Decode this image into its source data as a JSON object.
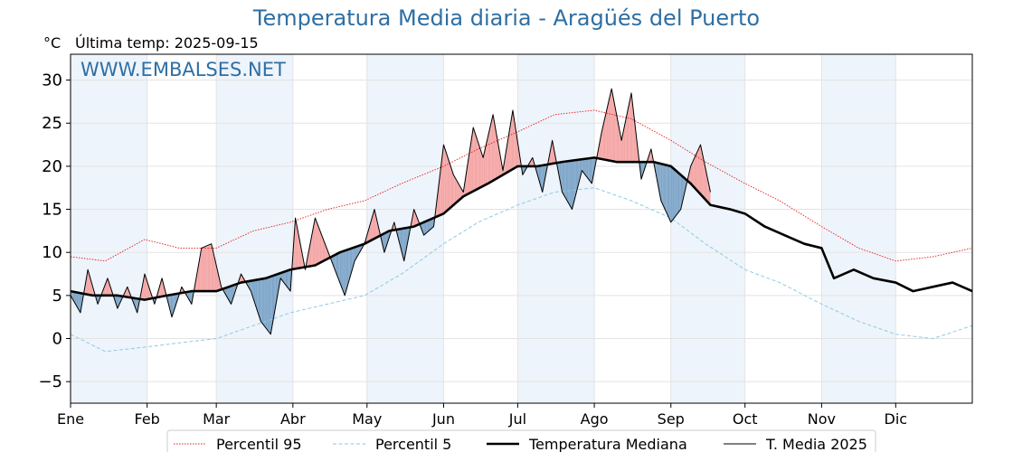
{
  "page": {
    "title": "Temperatura Media diaria - Aragüés del Puerto",
    "unit": "°C",
    "last_temp_label": "Última temp: 2025-09-15",
    "watermark": "WWW.EMBALSES.NET"
  },
  "colors": {
    "title": "#2e6fa3",
    "p95": "#e31a1c",
    "p5": "#8ecae6",
    "median": "#000000",
    "mean2025": "#000000",
    "fill_above": "#f4a6a6",
    "fill_above_strong": "#e84b4b",
    "fill_below": "#7fa6c9",
    "fill_below_strong": "#1f5f9e",
    "month_band": "#eef4fb"
  },
  "chart_data": {
    "type": "line",
    "title": "Temperatura Media diaria - Aragüés del Puerto",
    "ylabel": "°C",
    "ylim": [
      -7.5,
      33
    ],
    "xlim": [
      1,
      366
    ],
    "yticks": [
      -5,
      0,
      5,
      10,
      15,
      20,
      25,
      30
    ],
    "x_ticks": [
      {
        "label": "Ene",
        "day": 1
      },
      {
        "label": "Feb",
        "day": 32
      },
      {
        "label": "Mar",
        "day": 60
      },
      {
        "label": "Abr",
        "day": 91
      },
      {
        "label": "May",
        "day": 121
      },
      {
        "label": "Jun",
        "day": 152
      },
      {
        "label": "Jul",
        "day": 182
      },
      {
        "label": "Ago",
        "day": 213
      },
      {
        "label": "Sep",
        "day": 244
      },
      {
        "label": "Oct",
        "day": 274
      },
      {
        "label": "Nov",
        "day": 305
      },
      {
        "label": "Dic",
        "day": 335
      }
    ],
    "grid": true,
    "legend_position": "bottom",
    "series": [
      {
        "name": "Percentil 95",
        "style": "dotted",
        "color": "#e31a1c",
        "points": [
          [
            1,
            9.5
          ],
          [
            15,
            9
          ],
          [
            31,
            11.5
          ],
          [
            45,
            10.5
          ],
          [
            60,
            10.5
          ],
          [
            75,
            12.5
          ],
          [
            90,
            13.5
          ],
          [
            105,
            15
          ],
          [
            120,
            16
          ],
          [
            135,
            18
          ],
          [
            152,
            20
          ],
          [
            166,
            22
          ],
          [
            182,
            24
          ],
          [
            197,
            26
          ],
          [
            213,
            26.5
          ],
          [
            228,
            25.5
          ],
          [
            244,
            23
          ],
          [
            258,
            20.5
          ],
          [
            274,
            18
          ],
          [
            288,
            16
          ],
          [
            305,
            13
          ],
          [
            320,
            10.5
          ],
          [
            335,
            9
          ],
          [
            350,
            9.5
          ],
          [
            366,
            10.5
          ]
        ]
      },
      {
        "name": "Percentil 5",
        "style": "dashed",
        "color": "#8ecae6",
        "points": [
          [
            1,
            0.5
          ],
          [
            15,
            -1.5
          ],
          [
            31,
            -1
          ],
          [
            45,
            -0.5
          ],
          [
            60,
            0
          ],
          [
            75,
            1.5
          ],
          [
            90,
            3
          ],
          [
            105,
            4
          ],
          [
            120,
            5
          ],
          [
            135,
            7.5
          ],
          [
            152,
            11
          ],
          [
            166,
            13.5
          ],
          [
            182,
            15.5
          ],
          [
            197,
            17
          ],
          [
            213,
            17.5
          ],
          [
            228,
            16
          ],
          [
            244,
            14
          ],
          [
            258,
            11
          ],
          [
            274,
            8
          ],
          [
            288,
            6.5
          ],
          [
            305,
            4
          ],
          [
            320,
            2
          ],
          [
            335,
            0.5
          ],
          [
            350,
            0
          ],
          [
            366,
            1.5
          ]
        ]
      },
      {
        "name": "Temperatura Mediana",
        "style": "solid-thick",
        "color": "#000000",
        "points": [
          [
            1,
            5.5
          ],
          [
            10,
            5
          ],
          [
            20,
            5
          ],
          [
            31,
            4.5
          ],
          [
            40,
            5
          ],
          [
            50,
            5.5
          ],
          [
            60,
            5.5
          ],
          [
            70,
            6.5
          ],
          [
            80,
            7
          ],
          [
            90,
            8
          ],
          [
            100,
            8.5
          ],
          [
            110,
            10
          ],
          [
            120,
            11
          ],
          [
            130,
            12.5
          ],
          [
            140,
            13
          ],
          [
            152,
            14.5
          ],
          [
            160,
            16.5
          ],
          [
            170,
            18
          ],
          [
            182,
            20
          ],
          [
            190,
            20
          ],
          [
            200,
            20.5
          ],
          [
            213,
            21
          ],
          [
            222,
            20.5
          ],
          [
            230,
            20.5
          ],
          [
            237,
            20.5
          ],
          [
            244,
            20
          ],
          [
            252,
            18
          ],
          [
            260,
            15.5
          ],
          [
            268,
            15
          ],
          [
            274,
            14.5
          ],
          [
            282,
            13
          ],
          [
            290,
            12
          ],
          [
            298,
            11
          ],
          [
            305,
            10.5
          ],
          [
            310,
            7
          ],
          [
            318,
            8
          ],
          [
            326,
            7
          ],
          [
            335,
            6.5
          ],
          [
            342,
            5.5
          ],
          [
            350,
            6
          ],
          [
            358,
            6.5
          ],
          [
            366,
            5.5
          ]
        ]
      },
      {
        "name": "T. Media 2025",
        "style": "solid-thin",
        "color": "#000000",
        "points": [
          [
            1,
            5
          ],
          [
            5,
            3
          ],
          [
            8,
            8
          ],
          [
            12,
            4
          ],
          [
            16,
            7
          ],
          [
            20,
            3.5
          ],
          [
            24,
            6
          ],
          [
            28,
            3
          ],
          [
            31,
            7.5
          ],
          [
            35,
            4
          ],
          [
            38,
            7
          ],
          [
            42,
            2.5
          ],
          [
            46,
            6
          ],
          [
            50,
            4
          ],
          [
            54,
            10.5
          ],
          [
            58,
            11
          ],
          [
            62,
            6
          ],
          [
            66,
            4
          ],
          [
            70,
            7.5
          ],
          [
            74,
            5.5
          ],
          [
            78,
            2
          ],
          [
            82,
            0.5
          ],
          [
            86,
            7
          ],
          [
            90,
            5.5
          ],
          [
            92,
            14
          ],
          [
            96,
            8
          ],
          [
            100,
            14
          ],
          [
            104,
            11
          ],
          [
            108,
            8
          ],
          [
            112,
            5
          ],
          [
            116,
            9
          ],
          [
            120,
            11
          ],
          [
            124,
            15
          ],
          [
            128,
            10
          ],
          [
            132,
            13.5
          ],
          [
            136,
            9
          ],
          [
            140,
            15
          ],
          [
            144,
            12
          ],
          [
            148,
            13
          ],
          [
            152,
            22.5
          ],
          [
            156,
            19
          ],
          [
            160,
            17
          ],
          [
            164,
            24.5
          ],
          [
            168,
            21
          ],
          [
            172,
            26
          ],
          [
            176,
            19.5
          ],
          [
            180,
            26.5
          ],
          [
            184,
            19
          ],
          [
            188,
            21
          ],
          [
            192,
            17
          ],
          [
            196,
            23
          ],
          [
            200,
            17
          ],
          [
            204,
            15
          ],
          [
            208,
            19.5
          ],
          [
            212,
            18
          ],
          [
            216,
            24
          ],
          [
            220,
            29
          ],
          [
            224,
            23
          ],
          [
            228,
            28.5
          ],
          [
            232,
            18.5
          ],
          [
            236,
            22
          ],
          [
            240,
            16
          ],
          [
            244,
            13.5
          ],
          [
            248,
            15
          ],
          [
            252,
            20
          ],
          [
            256,
            22.5
          ],
          [
            260,
            17
          ]
        ]
      }
    ],
    "fills": [
      {
        "between": [
          "T. Media 2025",
          "Temperatura Mediana"
        ],
        "above_color": "#f4a6a6",
        "below_color": "#7fa6c9"
      }
    ]
  },
  "legend": {
    "items": [
      {
        "label": "Percentil 95",
        "style": "dotted",
        "color": "#e31a1c"
      },
      {
        "label": "Percentil 5",
        "style": "dashed",
        "color": "#8ecae6"
      },
      {
        "label": "Temperatura Mediana",
        "style": "thick",
        "color": "#000000"
      },
      {
        "label": "T. Media 2025",
        "style": "thin",
        "color": "#000000"
      }
    ]
  }
}
